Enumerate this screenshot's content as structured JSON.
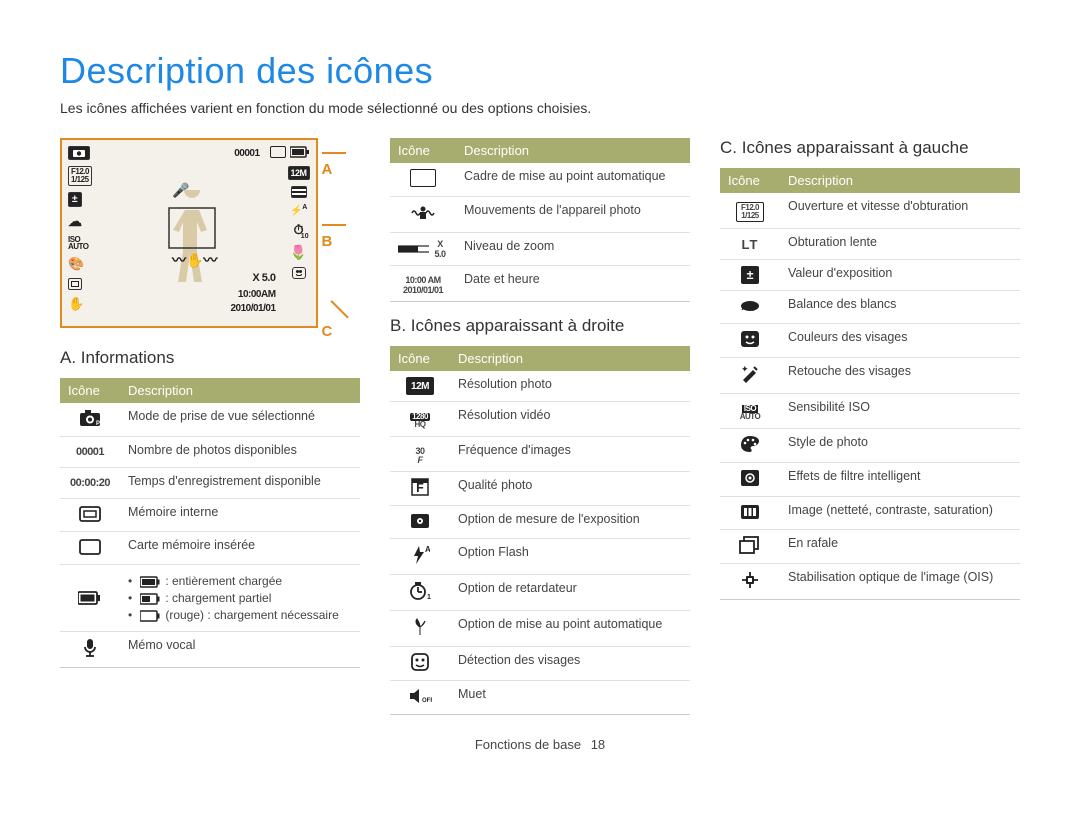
{
  "page": {
    "title": "Description des icônes",
    "subtitle": "Les icônes affichées varient en fonction du mode sélectionné ou des options choisies.",
    "footer_label": "Fonctions de base",
    "footer_page": "18"
  },
  "accent_color": "#1e88e5",
  "marker_color": "#e08a1f",
  "header_bg": "#a7ad6e",
  "lcd": {
    "top_left_mode": "📷p",
    "top_counter": "00001",
    "aperture": "F12.0",
    "shutter": "1/125",
    "zoom": "X 5.0",
    "time": "10:00AM",
    "date": "2010/01/01",
    "right_res": "12M"
  },
  "markers": {
    "a": "A",
    "b": "B",
    "c": "C"
  },
  "section_a": {
    "heading": "A. Informations",
    "th_icon": "Icône",
    "th_desc": "Description",
    "rows": [
      {
        "icon": "camera",
        "label": "",
        "desc": "Mode de prise de vue sélectionné"
      },
      {
        "icon": "text",
        "label": "00001",
        "desc": "Nombre de photos disponibles"
      },
      {
        "icon": "text",
        "label": "00:00:20",
        "desc": "Temps d'enregistrement disponible"
      },
      {
        "icon": "mem-int",
        "label": "",
        "desc": "Mémoire interne"
      },
      {
        "icon": "mem-card",
        "label": "",
        "desc": "Carte mémoire insérée"
      },
      {
        "icon": "batt",
        "label": "",
        "desc": "__BATT__"
      },
      {
        "icon": "mic",
        "label": "",
        "desc": "Mémo vocal"
      }
    ],
    "battery": {
      "full": ": entièrement chargée",
      "partial": ": chargement partiel",
      "low": "(rouge) : chargement nécessaire"
    }
  },
  "mid_table": {
    "th_icon": "Icône",
    "th_desc": "Description",
    "rows": [
      {
        "icon": "focus-frame",
        "desc": "Cadre de mise au point automatique"
      },
      {
        "icon": "shake",
        "desc": "Mouvements de l'appareil photo"
      },
      {
        "icon": "zoom-bar",
        "desc": "Niveau de zoom",
        "label": "X 5.0"
      },
      {
        "icon": "datetime",
        "desc": "Date et heure",
        "label1": "10:00 AM",
        "label2": "2010/01/01"
      }
    ]
  },
  "section_b": {
    "heading": "B. Icônes apparaissant à droite",
    "th_icon": "Icône",
    "th_desc": "Description",
    "rows": [
      {
        "icon": "res-photo",
        "label": "12M",
        "desc": "Résolution photo"
      },
      {
        "icon": "res-video",
        "label": "1280 HQ",
        "desc": "Résolution vidéo"
      },
      {
        "icon": "fps",
        "label": "30 F",
        "desc": "Fréquence d'images"
      },
      {
        "icon": "quality",
        "label": "",
        "desc": "Qualité photo"
      },
      {
        "icon": "metering",
        "label": "",
        "desc": "Option de mesure de l'exposition"
      },
      {
        "icon": "flash",
        "label": "A",
        "desc": "Option Flash"
      },
      {
        "icon": "timer",
        "label": "10",
        "desc": "Option de retardateur"
      },
      {
        "icon": "macro",
        "label": "",
        "desc": "Option de mise au point automatique"
      },
      {
        "icon": "face",
        "label": "",
        "desc": "Détection des visages"
      },
      {
        "icon": "mute",
        "label": "OFF",
        "desc": "Muet"
      }
    ]
  },
  "section_c": {
    "heading": "C. Icônes apparaissant à gauche",
    "th_icon": "Icône",
    "th_desc": "Description",
    "rows": [
      {
        "icon": "apshut",
        "label": "F12.0 1/125",
        "desc": "Ouverture et vitesse d'obturation"
      },
      {
        "icon": "lt",
        "label": "LT",
        "desc": "Obturation lente"
      },
      {
        "icon": "ev",
        "label": "",
        "desc": "Valeur d'exposition"
      },
      {
        "icon": "wb",
        "label": "",
        "desc": "Balance des blancs"
      },
      {
        "icon": "facecolor",
        "label": "",
        "desc": "Couleurs des visages"
      },
      {
        "icon": "retouch",
        "label": "",
        "desc": "Retouche des visages"
      },
      {
        "icon": "iso",
        "label": "ISO AUTO",
        "desc": "Sensibilité ISO"
      },
      {
        "icon": "style",
        "label": "",
        "desc": "Style de photo"
      },
      {
        "icon": "filter",
        "label": "",
        "desc": "Effets de filtre intelligent"
      },
      {
        "icon": "adjust",
        "label": "",
        "desc": "Image (netteté, contraste, saturation)"
      },
      {
        "icon": "burst",
        "label": "",
        "desc": "En rafale"
      },
      {
        "icon": "ois",
        "label": "",
        "desc": "Stabilisation optique de l'image (OIS)"
      }
    ]
  }
}
